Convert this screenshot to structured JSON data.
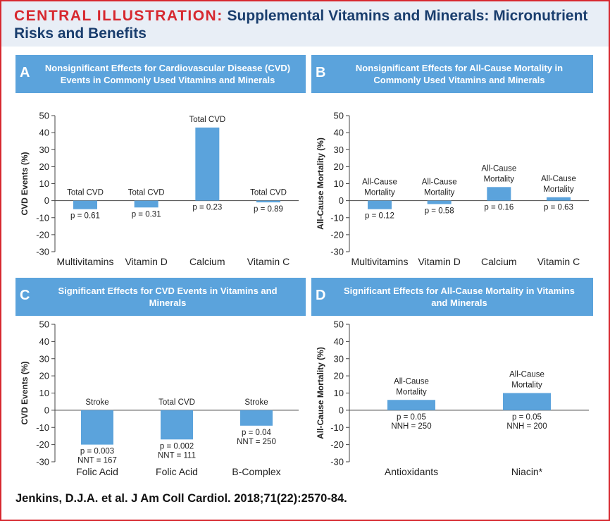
{
  "header": {
    "lead": "CENTRAL ILLUSTRATION:",
    "title": "Supplemental Vitamins and Minerals: Micronutrient Risks and Benefits"
  },
  "citation": "Jenkins, D.J.A. et al. J Am Coll Cardiol. 2018;71(22):2570-84.",
  "colors": {
    "frame": "#d7282f",
    "bar": "#5ba3dc",
    "panel_bar": "#5ba3dc",
    "header_bg": "#e8eef6",
    "title": "#1a3e6e"
  },
  "chart_data": [
    {
      "panel": "A",
      "type": "bar",
      "title": "Nonsignificant Effects for Cardiovascular Disease (CVD) Events in Commonly Used Vitamins and Minerals",
      "ylabel": "CVD Events (%)",
      "ylim": [
        -30,
        50
      ],
      "yticks": [
        50,
        40,
        30,
        20,
        10,
        0,
        -10,
        -20,
        -30
      ],
      "categories": [
        "Multivitamins",
        "Vitamin D",
        "Calcium",
        "Vitamin C"
      ],
      "values": [
        -5,
        -4,
        43,
        -1
      ],
      "bar_labels": [
        [
          "Total CVD"
        ],
        [
          "Total CVD"
        ],
        [
          "Total CVD"
        ],
        [
          "Total CVD"
        ]
      ],
      "stats": [
        [
          "p = 0.61"
        ],
        [
          "p = 0.31"
        ],
        [
          "p = 0.23"
        ],
        [
          "p = 0.89"
        ]
      ]
    },
    {
      "panel": "B",
      "type": "bar",
      "title": "Nonsignificant Effects for All-Cause Mortality in Commonly Used Vitamins and Minerals",
      "ylabel": "All-Cause Mortality (%)",
      "ylim": [
        -30,
        50
      ],
      "yticks": [
        50,
        40,
        30,
        20,
        10,
        0,
        -10,
        -20,
        -30
      ],
      "categories": [
        "Multivitamins",
        "Vitamin D",
        "Calcium",
        "Vitamin C"
      ],
      "values": [
        -5,
        -2,
        8,
        2
      ],
      "bar_labels": [
        [
          "All-Cause",
          "Mortality"
        ],
        [
          "All-Cause",
          "Mortality"
        ],
        [
          "All-Cause",
          "Mortality"
        ],
        [
          "All-Cause",
          "Mortality"
        ]
      ],
      "stats": [
        [
          "p = 0.12"
        ],
        [
          "p = 0.58"
        ],
        [
          "p = 0.16"
        ],
        [
          "p = 0.63"
        ]
      ]
    },
    {
      "panel": "C",
      "type": "bar",
      "title": "Significant Effects for CVD Events in Vitamins and Minerals",
      "ylabel": "CVD Events (%)",
      "ylim": [
        -30,
        50
      ],
      "yticks": [
        50,
        40,
        30,
        20,
        10,
        0,
        -10,
        -20,
        -30
      ],
      "categories": [
        "Folic Acid",
        "Folic Acid",
        "B-Complex"
      ],
      "values": [
        -20,
        -17,
        -9
      ],
      "bar_labels": [
        [
          "Stroke"
        ],
        [
          "Total CVD"
        ],
        [
          "Stroke"
        ]
      ],
      "stats": [
        [
          "p = 0.003",
          "NNT = 167"
        ],
        [
          "p = 0.002",
          "NNT = 111"
        ],
        [
          "p = 0.04",
          "NNT = 250"
        ]
      ]
    },
    {
      "panel": "D",
      "type": "bar",
      "title": "Significant Effects for All-Cause Mortality in Vitamins and Minerals",
      "ylabel": "All-Cause Mortality (%)",
      "ylim": [
        -30,
        50
      ],
      "yticks": [
        50,
        40,
        30,
        20,
        10,
        0,
        -10,
        -20,
        -30
      ],
      "categories": [
        "Antioxidants",
        "Niacin*"
      ],
      "values": [
        6,
        10
      ],
      "bar_labels": [
        [
          "All-Cause",
          "Mortality"
        ],
        [
          "All-Cause",
          "Mortality"
        ]
      ],
      "stats": [
        [
          "p = 0.05",
          "NNH = 250"
        ],
        [
          "p = 0.05",
          "NNH = 200"
        ]
      ]
    }
  ]
}
